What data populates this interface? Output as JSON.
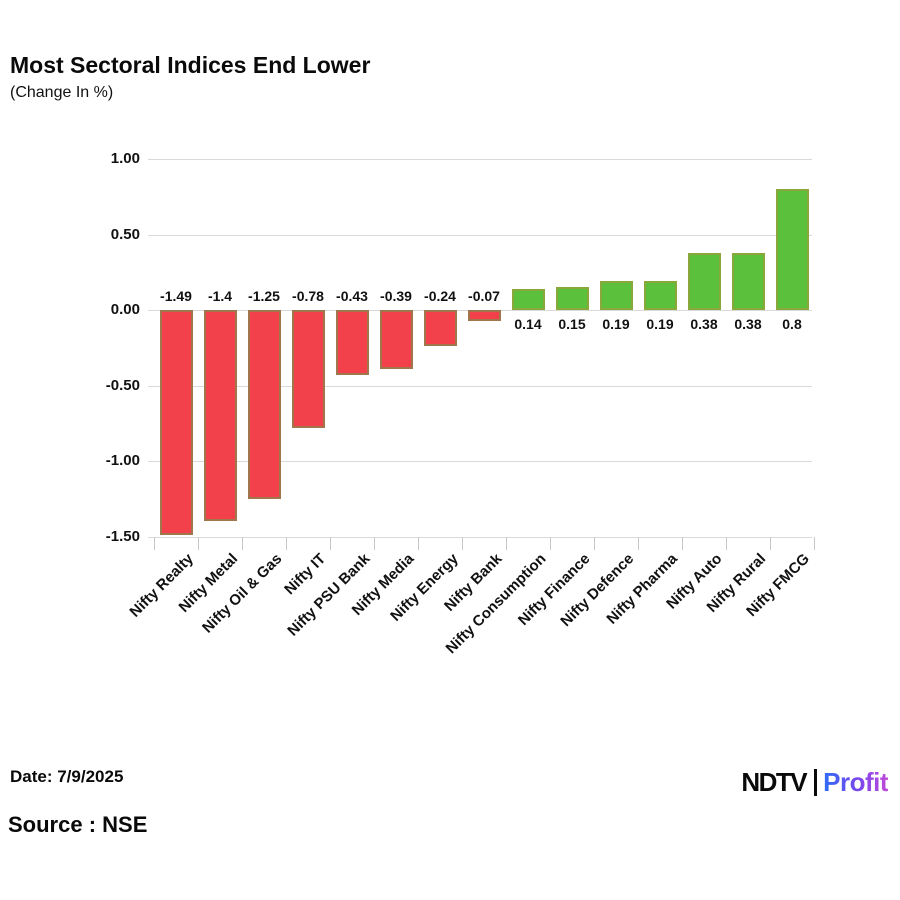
{
  "title": "Most Sectoral Indices End Lower",
  "subtitle": "(Change In %)",
  "footer": {
    "date": "Date: 7/9/2025",
    "source": "Source : NSE"
  },
  "logo": {
    "ndtv": "NDTV",
    "profit": "Profit"
  },
  "colors": {
    "negative_fill": "#f2414a",
    "negative_border": "#a1764d",
    "positive_fill": "#5bc13d",
    "positive_border": "#8aa83a",
    "gridline": "#d9d9d9",
    "axis_tick": "#c8c8c8",
    "text": "#111111"
  },
  "chart_data": {
    "type": "bar",
    "title": "Most Sectoral Indices End Lower",
    "subtitle": "(Change In %)",
    "categories": [
      "Nifty Realty",
      "Nifty Metal",
      "Nifty Oil & Gas",
      "Nifty IT",
      "Nifty PSU Bank",
      "Nifty Media",
      "Nifty Energy",
      "Nifty Bank",
      "Nifty Consumption",
      "Nifty Finance",
      "Nifty Defence",
      "Nifty Pharma",
      "Nifty Auto",
      "Nifty Rural",
      "Nifty FMCG"
    ],
    "values": [
      -1.49,
      -1.4,
      -1.25,
      -0.78,
      -0.43,
      -0.39,
      -0.24,
      -0.07,
      0.14,
      0.15,
      0.19,
      0.19,
      0.38,
      0.38,
      0.8
    ],
    "value_labels": [
      "-1.49",
      "-1.4",
      "-1.25",
      "-0.78",
      "-0.43",
      "-0.39",
      "-0.24",
      "-0.07",
      "0.14",
      "0.15",
      "0.19",
      "0.19",
      "0.38",
      "0.38",
      "0.8"
    ],
    "xlabel": "",
    "ylabel": "",
    "ylim": [
      -1.5,
      1.0
    ],
    "yticks": [
      1.0,
      0.5,
      0.0,
      -0.5,
      -1.0,
      -1.5
    ],
    "ytick_labels": [
      "1.00",
      "0.50",
      "0.00",
      "-0.50",
      "-1.00",
      "-1.50"
    ],
    "grid": true,
    "legend": false,
    "color_rule": "negative bars red, positive bars green"
  }
}
